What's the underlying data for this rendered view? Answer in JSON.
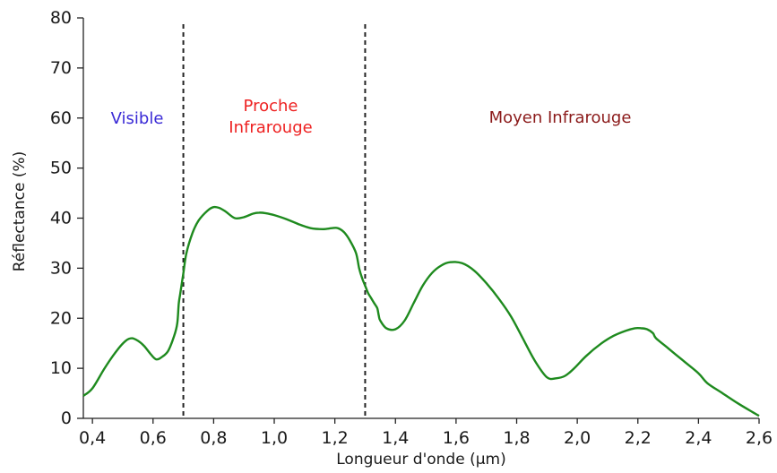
{
  "chart_data": {
    "type": "line",
    "title": "",
    "xlabel": "Longueur d'onde (µm)",
    "ylabel": "Réflectance (%)",
    "xlim": [
      0.37,
      2.6
    ],
    "ylim": [
      0,
      80
    ],
    "x_ticks": [
      0.4,
      0.6,
      0.8,
      1.0,
      1.2,
      1.4,
      1.6,
      1.8,
      2.0,
      2.2,
      2.4,
      2.6
    ],
    "x_tick_labels": [
      "0,4",
      "0,6",
      "0,8",
      "1,0",
      "1,2",
      "1,4",
      "1,6",
      "1,8",
      "2,0",
      "2,2",
      "2,4",
      "2,6"
    ],
    "y_ticks": [
      0,
      10,
      20,
      30,
      40,
      50,
      60,
      70,
      80
    ],
    "y_tick_labels": [
      "0",
      "10",
      "20",
      "30",
      "40",
      "50",
      "60",
      "70",
      "80"
    ],
    "grid": false,
    "series": [
      {
        "color": "#1e8a1e",
        "x": [
          0.37,
          0.4,
          0.44,
          0.48,
          0.51,
          0.53,
          0.55,
          0.57,
          0.59,
          0.61,
          0.63,
          0.65,
          0.67,
          0.68,
          0.685,
          0.69,
          0.7,
          0.71,
          0.73,
          0.75,
          0.78,
          0.8,
          0.82,
          0.84,
          0.87,
          0.9,
          0.93,
          0.95,
          0.97,
          1.0,
          1.04,
          1.08,
          1.12,
          1.16,
          1.19,
          1.21,
          1.23,
          1.25,
          1.27,
          1.28,
          1.29,
          1.3,
          1.31,
          1.32,
          1.33,
          1.34,
          1.345,
          1.35,
          1.37,
          1.4,
          1.43,
          1.46,
          1.49,
          1.52,
          1.55,
          1.58,
          1.62,
          1.66,
          1.7,
          1.74,
          1.78,
          1.82,
          1.86,
          1.9,
          1.93,
          1.96,
          1.99,
          2.03,
          2.08,
          2.12,
          2.16,
          2.19,
          2.21,
          2.23,
          2.25,
          2.26,
          2.3,
          2.35,
          2.4,
          2.43,
          2.48,
          2.53,
          2.58,
          2.6
        ],
        "y": [
          4.5,
          6,
          10,
          13.5,
          15.5,
          16,
          15.5,
          14.5,
          13,
          11.8,
          12.3,
          13.5,
          16.5,
          19,
          23,
          25,
          29,
          33,
          37,
          39.5,
          41.5,
          42.2,
          42,
          41.3,
          40,
          40.2,
          40.9,
          41.1,
          41,
          40.6,
          39.8,
          38.8,
          38,
          37.8,
          38,
          38,
          37.2,
          35.5,
          33,
          30,
          28,
          26.5,
          25,
          24,
          23,
          22,
          20.5,
          19.5,
          18,
          17.8,
          19.5,
          23,
          26.5,
          29,
          30.5,
          31.2,
          31,
          29.5,
          27,
          24,
          20.5,
          16,
          11.5,
          8.2,
          8,
          8.5,
          10,
          12.5,
          15,
          16.5,
          17.5,
          18,
          18,
          17.8,
          17,
          16,
          14,
          11.5,
          9,
          7,
          5,
          3,
          1.2,
          0.5
        ]
      }
    ],
    "boundaries": [
      0.7,
      1.3
    ],
    "regions": [
      {
        "lines": [
          "Visible"
        ],
        "color": "#3a2ad6"
      },
      {
        "lines": [
          "Proche",
          "Infrarouge"
        ],
        "color": "#ee2222"
      },
      {
        "lines": [
          "Moyen Infrarouge"
        ],
        "color": "#8b1a1a"
      }
    ]
  }
}
